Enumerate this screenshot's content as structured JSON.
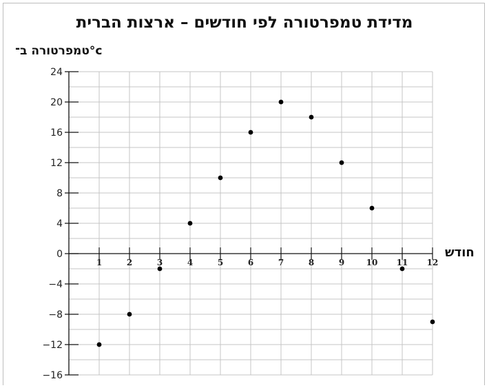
{
  "chart_data": {
    "type": "scatter",
    "title": "מדידת טמפרטורה לפי חודשים – ארצות הברית",
    "ylabel": "טמפרטורה ב־°c",
    "xlabel": "חודש",
    "xlim": [
      0,
      12
    ],
    "ylim": [
      -16,
      24
    ],
    "x_ticks": [
      1,
      2,
      3,
      4,
      5,
      6,
      7,
      8,
      9,
      10,
      11,
      12
    ],
    "y_ticks": [
      24,
      20,
      16,
      12,
      8,
      4,
      0,
      -4,
      -8,
      -12,
      -16
    ],
    "y_tick_labels": [
      "24",
      "20",
      "16",
      "12",
      "8",
      "4",
      "0",
      "−4",
      "−8",
      "−12",
      "−16"
    ],
    "grid": true,
    "points": [
      {
        "x": 1,
        "y": -12
      },
      {
        "x": 2,
        "y": -8
      },
      {
        "x": 3,
        "y": -2
      },
      {
        "x": 4,
        "y": 4
      },
      {
        "x": 5,
        "y": 10
      },
      {
        "x": 6,
        "y": 16
      },
      {
        "x": 7,
        "y": 20
      },
      {
        "x": 8,
        "y": 18
      },
      {
        "x": 9,
        "y": 12
      },
      {
        "x": 10,
        "y": 6
      },
      {
        "x": 11,
        "y": -2
      },
      {
        "x": 12,
        "y": -9
      }
    ]
  }
}
